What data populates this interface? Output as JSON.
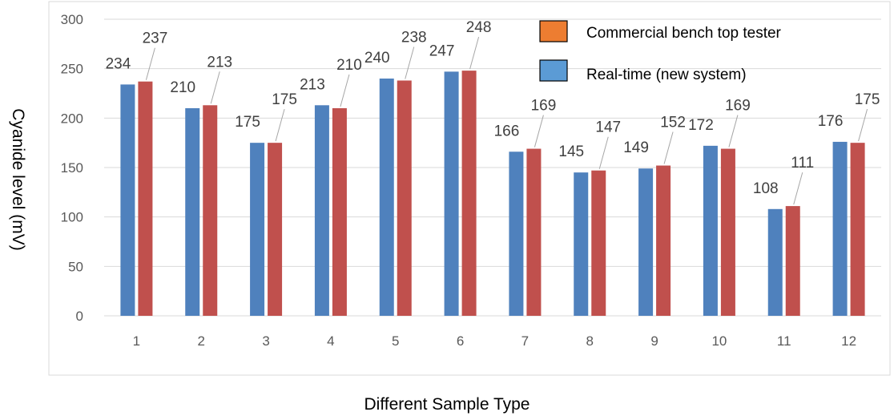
{
  "chart_data": {
    "type": "bar",
    "title": "",
    "xlabel": "Different Sample Type",
    "ylabel": "Cyanide level (mV)",
    "categories": [
      "1",
      "2",
      "3",
      "4",
      "5",
      "6",
      "7",
      "8",
      "9",
      "10",
      "11",
      "12"
    ],
    "series": [
      {
        "name": "Real-time (new system)",
        "color": "#4f81bd",
        "values": [
          234,
          210,
          175,
          213,
          240,
          247,
          166,
          145,
          149,
          172,
          108,
          176
        ]
      },
      {
        "name": "Commercial bench top tester",
        "color": "#c0504d",
        "values": [
          237,
          213,
          175,
          210,
          238,
          248,
          169,
          147,
          152,
          169,
          111,
          175
        ]
      }
    ],
    "legend_entries": [
      {
        "label": "Commercial bench top tester",
        "swatch_color": "#ed7d31"
      },
      {
        "label": "Real-time (new system)",
        "swatch_color": "#5b9bd5"
      }
    ],
    "ylim": [
      0,
      300
    ],
    "yticks": [
      "0",
      "50",
      "100",
      "150",
      "200",
      "250",
      "300"
    ],
    "grid": true,
    "legend_position": "top-right"
  }
}
